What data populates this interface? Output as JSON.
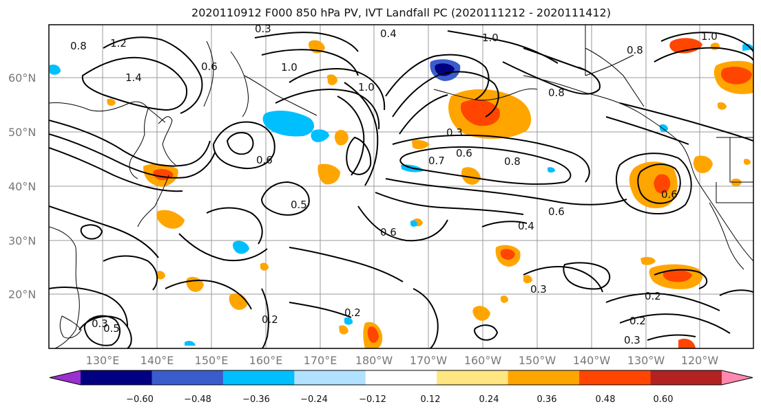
{
  "title": "2020110912 F000 850 hPa PV, IVT Landfall PC (2020111212 - 2020111412)",
  "lat_labels": [
    "60°N",
    "50°N",
    "40°N",
    "30°N",
    "20°N"
  ],
  "lon_labels": [
    "130°E",
    "140°E",
    "150°E",
    "160°E",
    "170°E",
    "180°W",
    "170°W",
    "160°W",
    "150°W",
    "140°W",
    "130°W",
    "120°W"
  ],
  "colorbar": {
    "ticks": [
      "−0.60",
      "−0.48",
      "−0.36",
      "−0.24",
      "−0.12",
      "0.12",
      "0.24",
      "0.36",
      "0.48",
      "0.60"
    ],
    "colors": [
      "#9a30d0",
      "#000080",
      "#3a5ccc",
      "#00bfff",
      "#b0e2ff",
      "#ffffff",
      "#ffe680",
      "#ffa500",
      "#ff4500",
      "#b22222",
      "#ff88b0"
    ]
  },
  "contour_labels": [
    "1.2",
    "0.8",
    "0.3",
    "0.4",
    "1.0",
    "1.0",
    "0.8",
    "1.4",
    "0.6",
    "1.0",
    "1.0",
    "0.8",
    "0.3",
    "0.6",
    "0.7",
    "0.8",
    "0.6",
    "0.5",
    "0.6",
    "0.6",
    "0.4",
    "0.6",
    "0.3",
    "0.2",
    "0.2",
    "0.3",
    "0.2",
    "0.3",
    "0.2",
    "0.5"
  ]
}
